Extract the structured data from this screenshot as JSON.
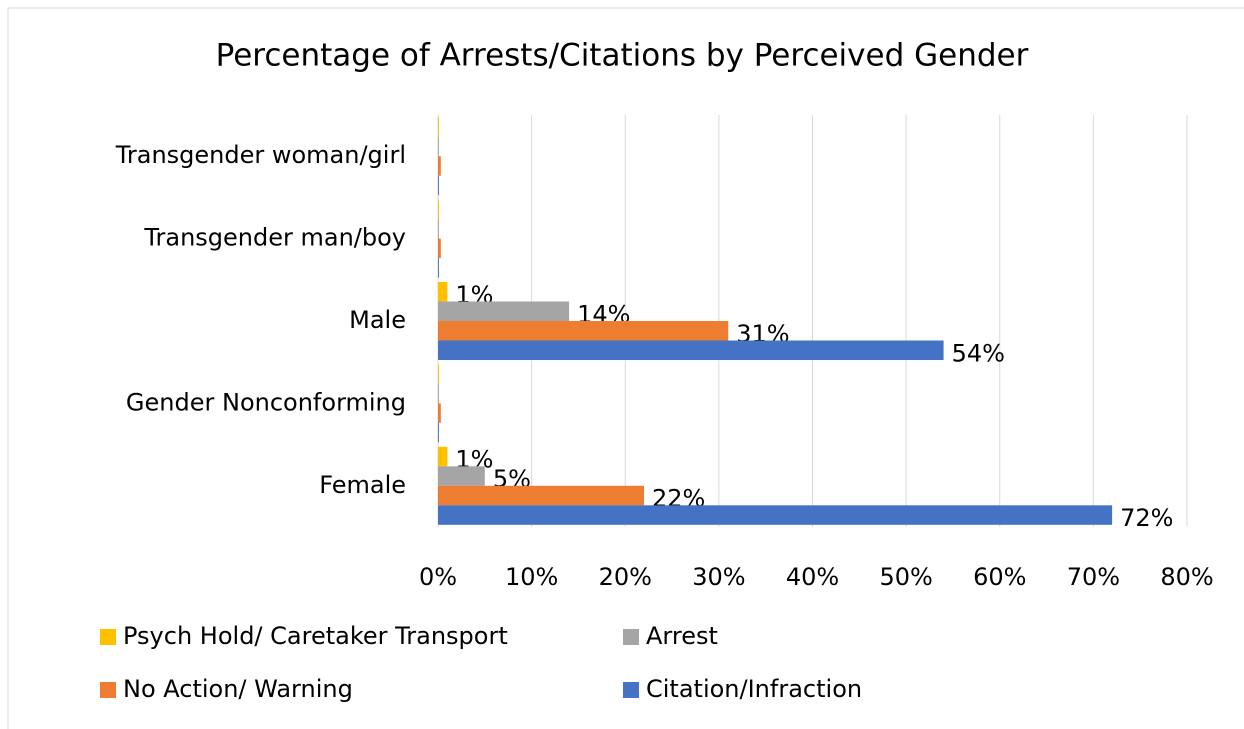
{
  "chart_data": {
    "type": "hbar",
    "title": "Percentage of Arrests/Citations by Perceived Gender",
    "categories": [
      "Female",
      "Gender Nonconforming",
      "Male",
      "Transgender man/boy",
      "Transgender woman/girl"
    ],
    "series": [
      {
        "name": "Psych Hold/ Caretaker Transport",
        "color": "#ffc000",
        "values": [
          1,
          0.1,
          1,
          0.1,
          0.1
        ],
        "value_labels": [
          "1%",
          null,
          "1%",
          null,
          null
        ]
      },
      {
        "name": "Arrest",
        "color": "#a5a5a5",
        "values": [
          5,
          0.1,
          14,
          0.1,
          0.1
        ],
        "value_labels": [
          "5%",
          null,
          "14%",
          null,
          null
        ]
      },
      {
        "name": "No Action/ Warning",
        "color": "#ed7d31",
        "values": [
          22,
          0.3,
          31,
          0.3,
          0.3
        ],
        "value_labels": [
          "22%",
          null,
          "31%",
          null,
          null
        ]
      },
      {
        "name": "Citation/Infraction",
        "color": "#4472c4",
        "values": [
          72,
          0.1,
          54,
          0.1,
          0.1
        ],
        "value_labels": [
          "72%",
          null,
          "54%",
          null,
          null
        ]
      }
    ],
    "xlim": [
      0,
      80
    ],
    "xticks": [
      {
        "value": 0,
        "label": "0%"
      },
      {
        "value": 10,
        "label": "10%"
      },
      {
        "value": 20,
        "label": "20%"
      },
      {
        "value": 30,
        "label": "30%"
      },
      {
        "value": 40,
        "label": "40%"
      },
      {
        "value": 50,
        "label": "50%"
      },
      {
        "value": 60,
        "label": "60%"
      },
      {
        "value": 70,
        "label": "70%"
      },
      {
        "value": 80,
        "label": "80%"
      }
    ],
    "grid": true
  }
}
